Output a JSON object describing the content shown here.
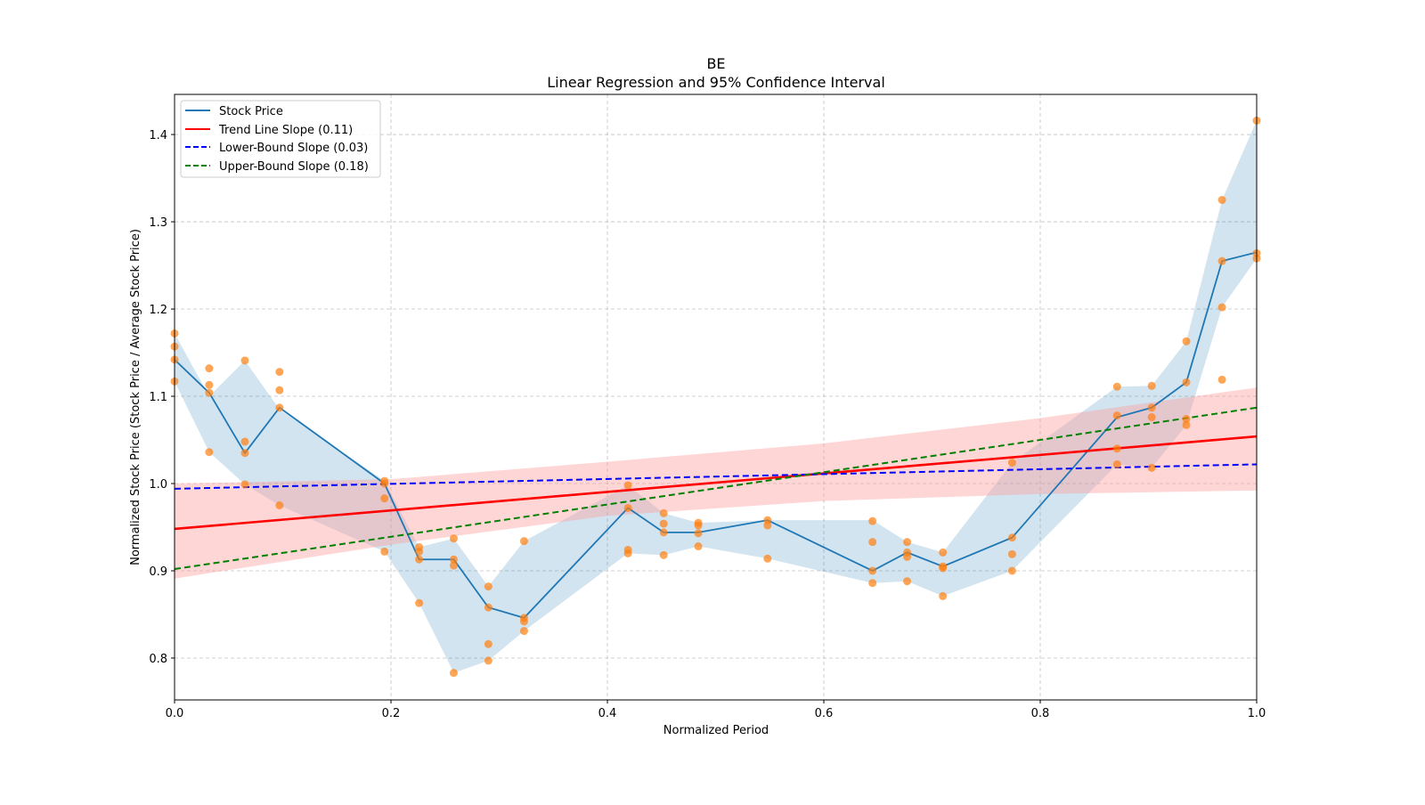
{
  "chart_data": {
    "type": "line",
    "title": "BE",
    "subtitle": "Linear Regression and 95% Confidence Interval",
    "xlabel": "Normalized Period",
    "ylabel": "Normalized Stock Price (Stock Price / Average Stock Price)",
    "xlim": [
      0,
      1
    ],
    "ylim": [
      0.752,
      1.446
    ],
    "xticks": [
      0,
      0.2,
      0.4,
      0.6,
      0.8,
      1.0
    ],
    "xtick_labels": [
      "0.0",
      "0.2",
      "0.4",
      "0.6",
      "0.8",
      "1.0"
    ],
    "yticks": [
      0.8,
      0.9,
      1.0,
      1.1,
      1.2,
      1.3,
      1.4
    ],
    "ytick_labels": [
      "0.8",
      "0.9",
      "1.0",
      "1.1",
      "1.2",
      "1.3",
      "1.4"
    ],
    "grid": true,
    "legend_position": "top-left",
    "colors": {
      "stock": "#1f77b4",
      "stock_band": "#1f77b4",
      "trend": "#ff0000",
      "trend_band": "#ff9999",
      "lower": "#0000ff",
      "upper": "#008000",
      "scatter": "#ff7f0e",
      "grid": "#b0b0b0"
    },
    "legend": [
      {
        "label": "Stock Price",
        "style": "solid",
        "color": "#1f77b4"
      },
      {
        "label": "Trend Line Slope (0.11)",
        "style": "solid",
        "color": "#ff0000"
      },
      {
        "label": "Lower-Bound Slope (0.03)",
        "style": "dashed",
        "color": "#0000ff"
      },
      {
        "label": "Upper-Bound Slope (0.18)",
        "style": "dashed",
        "color": "#008000"
      }
    ],
    "stock_price": {
      "x": [
        0,
        0.032,
        0.065,
        0.097,
        0.194,
        0.226,
        0.258,
        0.29,
        0.323,
        0.419,
        0.452,
        0.484,
        0.548,
        0.645,
        0.677,
        0.71,
        0.774,
        0.871,
        0.903,
        0.935,
        0.968,
        1.0
      ],
      "y": [
        1.142,
        1.104,
        1.035,
        1.087,
        1.0,
        0.913,
        0.913,
        0.858,
        0.846,
        0.972,
        0.944,
        0.944,
        0.958,
        0.9,
        0.921,
        0.905,
        0.938,
        1.076,
        1.087,
        1.116,
        1.255,
        1.265
      ],
      "band_upper": [
        1.172,
        1.1,
        1.141,
        1.085,
        1.003,
        0.927,
        0.937,
        0.882,
        0.934,
        0.998,
        0.966,
        0.955,
        0.958,
        0.958,
        0.933,
        0.921,
        1.024,
        1.111,
        1.112,
        1.163,
        1.325,
        1.416
      ],
      "band_lower": [
        1.117,
        1.036,
        0.999,
        0.975,
        0.922,
        0.863,
        0.783,
        0.797,
        0.831,
        0.92,
        0.918,
        0.928,
        0.914,
        0.886,
        0.888,
        0.871,
        0.9,
        1.022,
        1.018,
        1.067,
        1.202,
        1.258
      ]
    },
    "scatter_points": [
      [
        0,
        1.172
      ],
      [
        0,
        1.157
      ],
      [
        0,
        1.142
      ],
      [
        0,
        1.117
      ],
      [
        0.032,
        1.132
      ],
      [
        0.032,
        1.113
      ],
      [
        0.032,
        1.104
      ],
      [
        0.032,
        1.036
      ],
      [
        0.065,
        1.141
      ],
      [
        0.065,
        1.048
      ],
      [
        0.065,
        1.035
      ],
      [
        0.065,
        0.999
      ],
      [
        0.097,
        1.128
      ],
      [
        0.097,
        1.107
      ],
      [
        0.097,
        1.087
      ],
      [
        0.097,
        0.975
      ],
      [
        0.194,
        1.003
      ],
      [
        0.194,
        1.0
      ],
      [
        0.194,
        0.983
      ],
      [
        0.194,
        0.922
      ],
      [
        0.226,
        0.927
      ],
      [
        0.226,
        0.922
      ],
      [
        0.226,
        0.913
      ],
      [
        0.226,
        0.863
      ],
      [
        0.258,
        0.937
      ],
      [
        0.258,
        0.913
      ],
      [
        0.258,
        0.906
      ],
      [
        0.258,
        0.783
      ],
      [
        0.29,
        0.882
      ],
      [
        0.29,
        0.858
      ],
      [
        0.29,
        0.816
      ],
      [
        0.29,
        0.797
      ],
      [
        0.323,
        0.934
      ],
      [
        0.323,
        0.846
      ],
      [
        0.323,
        0.842
      ],
      [
        0.323,
        0.831
      ],
      [
        0.419,
        0.998
      ],
      [
        0.419,
        0.972
      ],
      [
        0.419,
        0.924
      ],
      [
        0.419,
        0.92
      ],
      [
        0.452,
        0.966
      ],
      [
        0.452,
        0.954
      ],
      [
        0.452,
        0.944
      ],
      [
        0.452,
        0.918
      ],
      [
        0.484,
        0.955
      ],
      [
        0.484,
        0.952
      ],
      [
        0.484,
        0.943
      ],
      [
        0.484,
        0.928
      ],
      [
        0.548,
        0.958
      ],
      [
        0.548,
        0.952
      ],
      [
        0.548,
        0.914
      ],
      [
        0.645,
        0.957
      ],
      [
        0.645,
        0.933
      ],
      [
        0.645,
        0.9
      ],
      [
        0.645,
        0.886
      ],
      [
        0.677,
        0.933
      ],
      [
        0.677,
        0.921
      ],
      [
        0.677,
        0.916
      ],
      [
        0.677,
        0.888
      ],
      [
        0.71,
        0.921
      ],
      [
        0.71,
        0.905
      ],
      [
        0.71,
        0.903
      ],
      [
        0.71,
        0.871
      ],
      [
        0.774,
        1.024
      ],
      [
        0.774,
        0.938
      ],
      [
        0.774,
        0.919
      ],
      [
        0.774,
        0.9
      ],
      [
        0.871,
        1.111
      ],
      [
        0.871,
        1.078
      ],
      [
        0.871,
        1.04
      ],
      [
        0.871,
        1.022
      ],
      [
        0.903,
        1.112
      ],
      [
        0.903,
        1.087
      ],
      [
        0.903,
        1.076
      ],
      [
        0.903,
        1.018
      ],
      [
        0.935,
        1.163
      ],
      [
        0.935,
        1.116
      ],
      [
        0.935,
        1.074
      ],
      [
        0.935,
        1.067
      ],
      [
        0.968,
        1.325
      ],
      [
        0.968,
        1.255
      ],
      [
        0.968,
        1.202
      ],
      [
        0.968,
        1.119
      ],
      [
        1.0,
        1.416
      ],
      [
        1.0,
        1.264
      ],
      [
        1.0,
        1.258
      ]
    ],
    "trend_line": {
      "x": [
        0,
        1
      ],
      "y": [
        0.948,
        1.054
      ]
    },
    "trend_band": {
      "x": [
        0,
        0.2,
        0.4,
        0.6,
        0.8,
        1.0
      ],
      "upper": [
        1.0,
        1.005,
        1.025,
        1.046,
        1.075,
        1.11
      ],
      "lower": [
        0.891,
        0.93,
        0.963,
        0.98,
        0.988,
        0.992
      ]
    },
    "lower_bound_line": {
      "x": [
        0,
        1
      ],
      "y": [
        0.994,
        1.022
      ]
    },
    "upper_bound_line": {
      "x": [
        0,
        1
      ],
      "y": [
        0.902,
        1.087
      ]
    }
  }
}
